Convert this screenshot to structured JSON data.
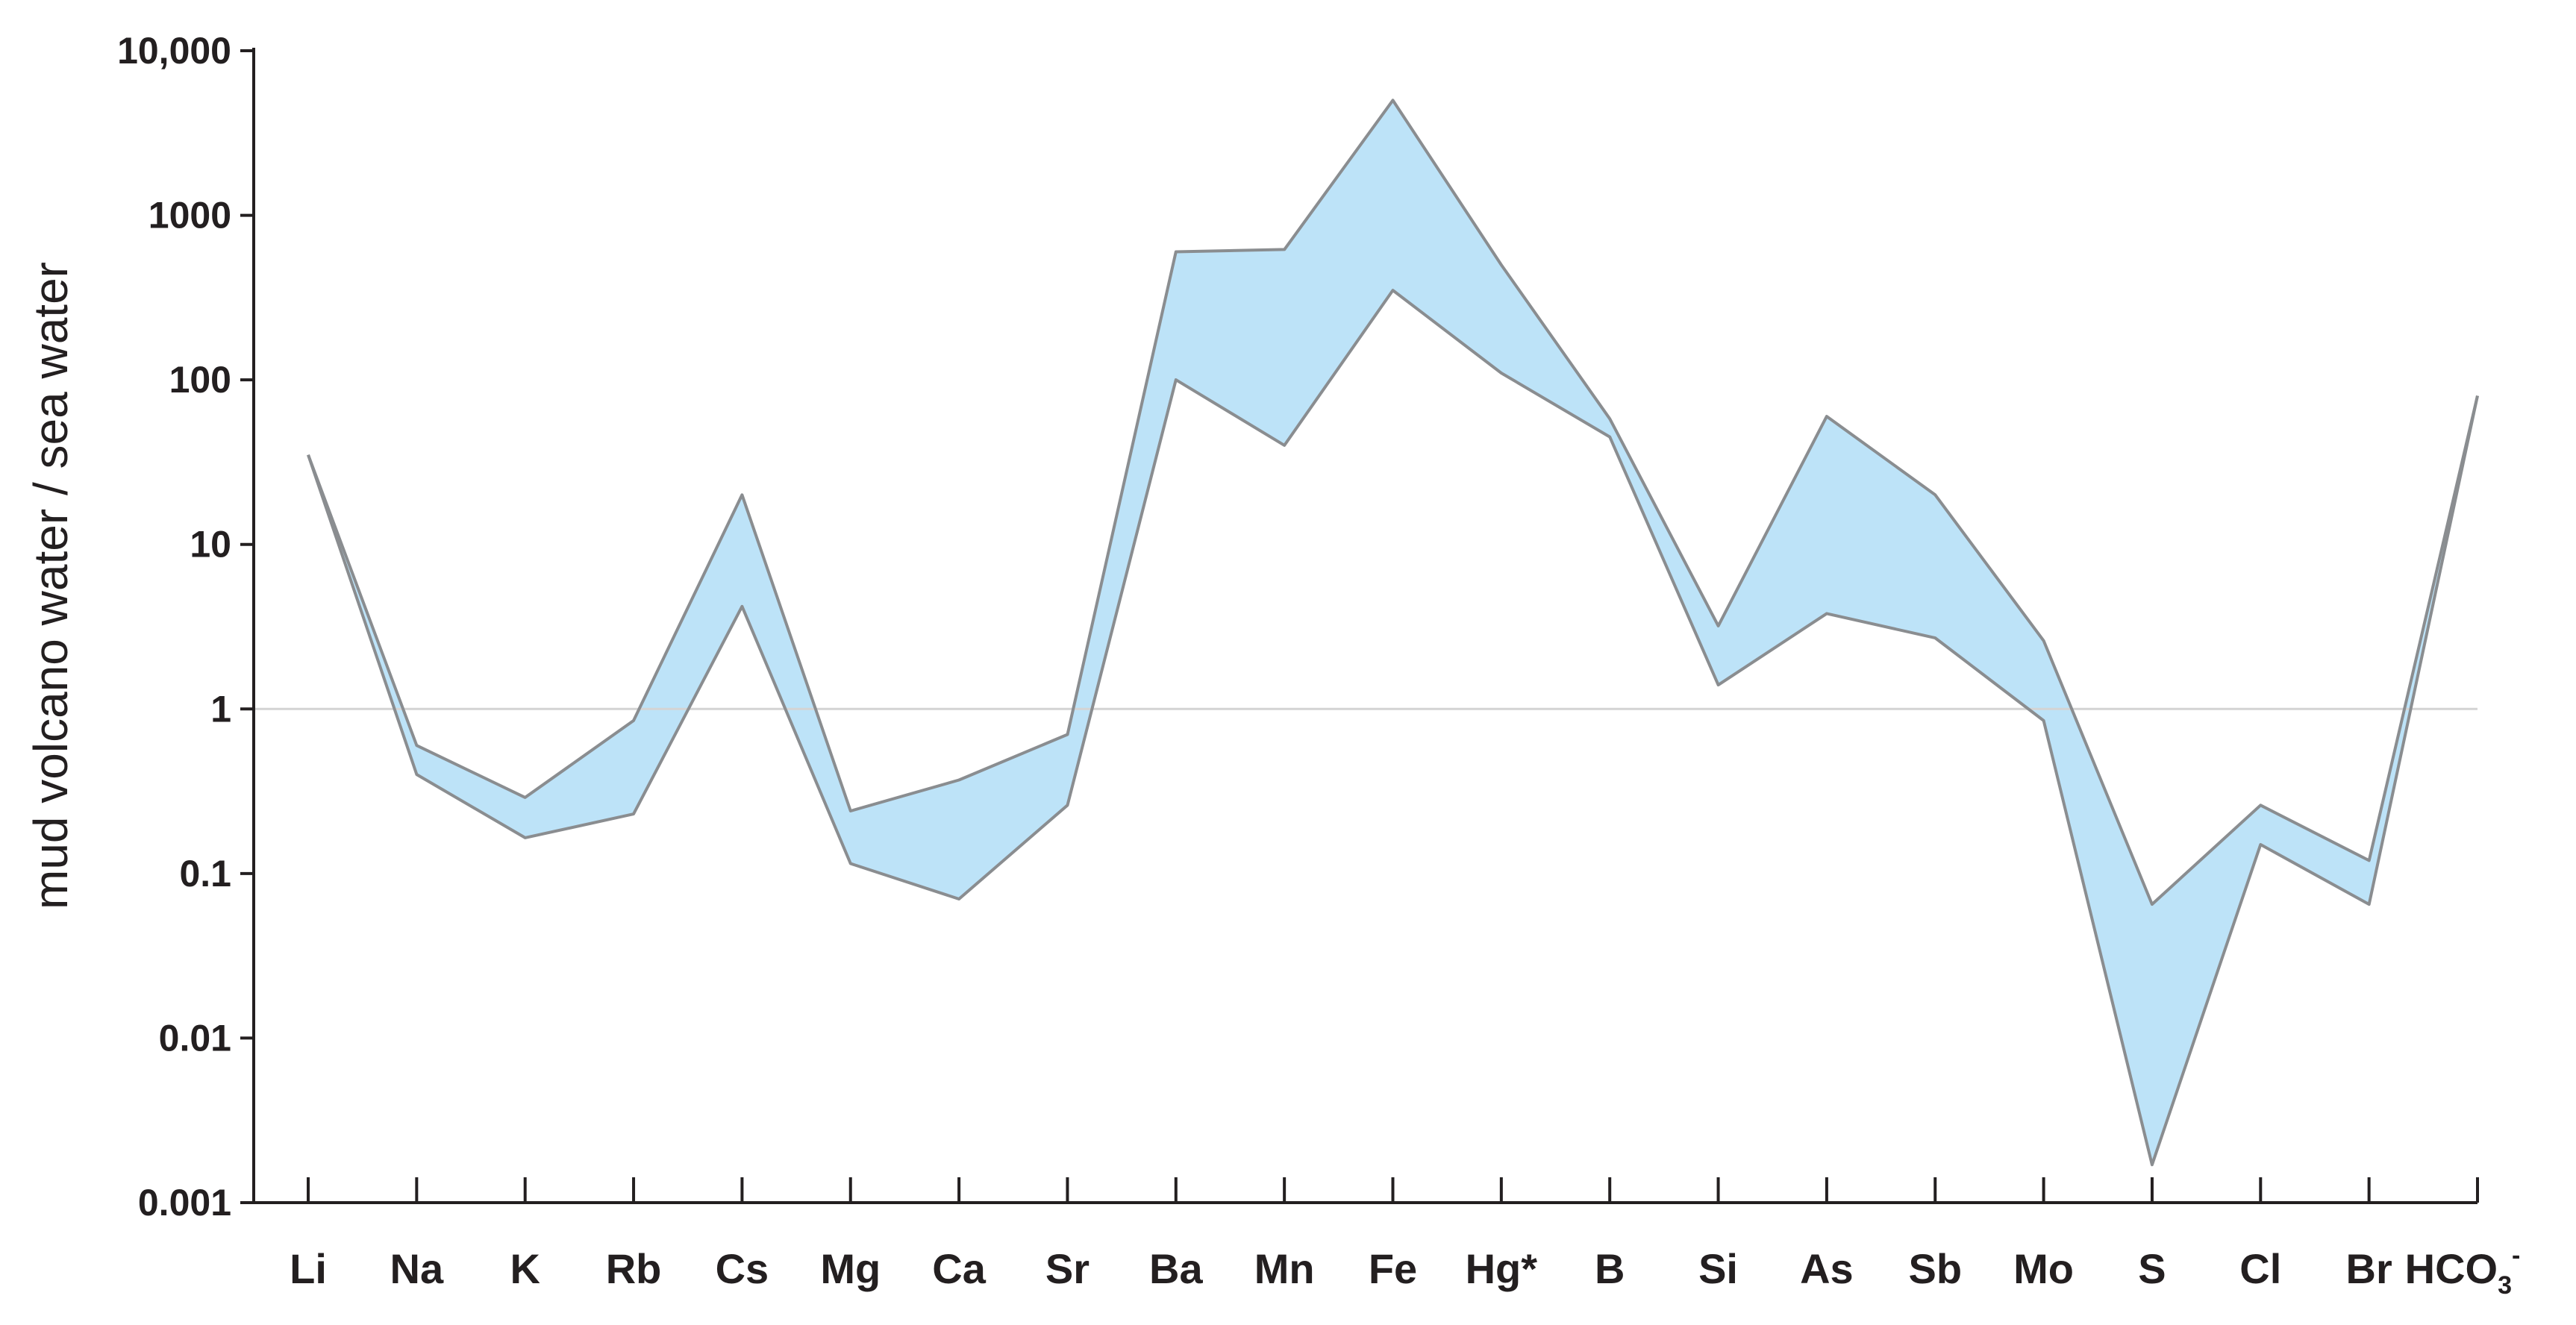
{
  "chart_data": {
    "type": "area",
    "ylabel": "mud volcano water / sea water",
    "xlabel": "",
    "title": "",
    "yscale": "log",
    "ylim": [
      0.001,
      10000
    ],
    "grid": false,
    "reference_line": 1,
    "categories": [
      "Li",
      "Na",
      "K",
      "Rb",
      "Cs",
      "Mg",
      "Ca",
      "Sr",
      "Ba",
      "Mn",
      "Fe",
      "Hg*",
      "B",
      "Si",
      "As",
      "Sb",
      "Mo",
      "S",
      "Cl",
      "Br",
      "HCO3-"
    ],
    "category_labels": [
      {
        "main": "Li"
      },
      {
        "main": "Na"
      },
      {
        "main": "K"
      },
      {
        "main": "Rb"
      },
      {
        "main": "Cs"
      },
      {
        "main": "Mg"
      },
      {
        "main": "Ca"
      },
      {
        "main": "Sr"
      },
      {
        "main": "Ba"
      },
      {
        "main": "Mn"
      },
      {
        "main": "Fe"
      },
      {
        "main": "Hg*"
      },
      {
        "main": "B"
      },
      {
        "main": "Si"
      },
      {
        "main": "As"
      },
      {
        "main": "Sb"
      },
      {
        "main": "Mo"
      },
      {
        "main": "S"
      },
      {
        "main": "Cl"
      },
      {
        "main": "Br"
      },
      {
        "main": "HCO",
        "sub": "3",
        "sup": "-"
      }
    ],
    "yticks": [
      {
        "value": 10000,
        "label": "10,000"
      },
      {
        "value": 1000,
        "label": "1000"
      },
      {
        "value": 100,
        "label": "100"
      },
      {
        "value": 10,
        "label": "10"
      },
      {
        "value": 1,
        "label": "1"
      },
      {
        "value": 0.1,
        "label": "0.1"
      },
      {
        "value": 0.01,
        "label": "0.01"
      },
      {
        "value": 0.001,
        "label": "0.001"
      }
    ],
    "series": [
      {
        "values": [
          35,
          0.6,
          0.29,
          0.85,
          20,
          0.24,
          0.37,
          0.7,
          600,
          620,
          5000,
          500,
          58,
          3.2,
          60,
          20,
          2.6,
          0.065,
          0.26,
          0.12,
          80
        ]
      },
      {
        "values": [
          35,
          0.4,
          0.165,
          0.23,
          4.2,
          0.115,
          0.07,
          0.26,
          100,
          40,
          350,
          110,
          45,
          1.4,
          3.8,
          2.7,
          0.85,
          0.0017,
          0.15,
          0.065,
          80
        ]
      }
    ],
    "colors": {
      "fill": "#bde3f8",
      "edge": "#8a8d90",
      "axis": "#231f20",
      "reference_line": "#d4d4d4"
    }
  }
}
